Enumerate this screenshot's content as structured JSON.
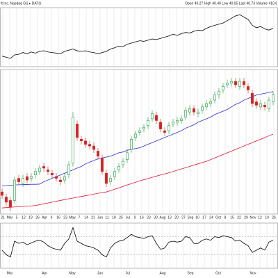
{
  "header": {
    "title": "ft Inc. Nasdaq GS ▸ DATG",
    "quote": "Open 40.27  High 40.40  Low 40.05  Last 40.73  Volume 410.6"
  },
  "chart_data": {
    "type": "candlestick",
    "ylim": [
      0,
      85
    ],
    "open": [
      13,
      10,
      8,
      8,
      21,
      18,
      22,
      21,
      23,
      25,
      28,
      26,
      24,
      22,
      20,
      20,
      23,
      30,
      53,
      44,
      43,
      41,
      40,
      37,
      33,
      24,
      19,
      22,
      26,
      29,
      32,
      38,
      45,
      48,
      50,
      52,
      56,
      58,
      54,
      49,
      49,
      53,
      54,
      55,
      57,
      60,
      62,
      59,
      61,
      63,
      65,
      67,
      70,
      73,
      76,
      77,
      78,
      75,
      78,
      75,
      71,
      66,
      63,
      64,
      62,
      66
    ],
    "high": [
      15,
      12,
      10,
      22,
      23,
      23,
      24,
      24,
      27,
      29,
      30,
      28,
      26,
      24,
      22,
      24,
      31,
      60,
      55,
      46,
      45,
      43,
      42,
      39,
      35,
      26,
      23,
      27,
      30,
      33,
      38,
      46,
      49,
      51,
      53,
      57,
      61,
      60,
      56,
      51,
      54,
      56,
      57,
      58,
      63,
      64,
      64,
      62,
      65,
      67,
      68,
      72,
      74,
      77,
      79,
      80,
      80,
      80,
      80,
      77,
      73,
      68,
      67,
      66,
      69,
      72
    ],
    "low": [
      9,
      5,
      2,
      6,
      17,
      16,
      18,
      19,
      21,
      23,
      25,
      23,
      21,
      19,
      17,
      18,
      21,
      28,
      43,
      41,
      39,
      38,
      36,
      32,
      23,
      16,
      17,
      20,
      24,
      27,
      30,
      36,
      43,
      46,
      48,
      50,
      54,
      53,
      48,
      46,
      47,
      51,
      52,
      53,
      55,
      58,
      58,
      57,
      59,
      61,
      63,
      65,
      68,
      71,
      74,
      75,
      74,
      73,
      74,
      71,
      63,
      62,
      61,
      61,
      60,
      64
    ],
    "close": [
      11,
      7,
      4,
      20,
      19,
      21,
      20,
      22,
      25,
      27,
      27,
      25,
      23,
      21,
      19,
      22,
      29,
      57,
      45,
      43,
      41,
      40,
      38,
      34,
      25,
      18,
      21,
      25,
      28,
      31,
      36,
      44,
      47,
      49,
      51,
      55,
      59,
      55,
      50,
      48,
      52,
      54,
      55,
      56,
      61,
      62,
      60,
      60,
      63,
      65,
      66,
      70,
      72,
      75,
      77,
      78,
      76,
      78,
      76,
      73,
      65,
      64,
      65,
      63,
      67,
      70
    ],
    "up_color": "#1a9c3a",
    "down_color": "#d62020",
    "series": [
      {
        "color": "#2a2ad0",
        "values": [
          16.5,
          16.7,
          16.9,
          17.1,
          17.2,
          17.3,
          17.4,
          17.5,
          17.5,
          17.6,
          19,
          20,
          21,
          22,
          23,
          24,
          25,
          26,
          27,
          28,
          29.5,
          30.5,
          31.5,
          32.5,
          33,
          33.5,
          34,
          35,
          36,
          36.5,
          37.5,
          38,
          38.5,
          39,
          40,
          41,
          42,
          43,
          44,
          45,
          46,
          47,
          48,
          49,
          50.5,
          51.5,
          52.5,
          54,
          55,
          56,
          57,
          58.5,
          59.5,
          60.5,
          61.5,
          63,
          64.5,
          65.5,
          67,
          68,
          69,
          70,
          70.5,
          71,
          71.5,
          72
        ]
      },
      {
        "color": "#e01030",
        "values": [
          3.6,
          3.8,
          4,
          4.2,
          4.3,
          4.5,
          4.7,
          4.8,
          5,
          5.5,
          6,
          6.5,
          7,
          7.5,
          8,
          8.5,
          9,
          9.4,
          9.9,
          10.3,
          10.8,
          11.2,
          11.7,
          12.2,
          12.6,
          13,
          13.8,
          14.6,
          15.4,
          16.3,
          17.1,
          17.9,
          18.7,
          19.5,
          20.2,
          20.9,
          21.6,
          22.3,
          23,
          23.6,
          24.3,
          25,
          25.8,
          26.5,
          27.3,
          28,
          28.8,
          29.5,
          30.3,
          31,
          32,
          33,
          34,
          35,
          36,
          37,
          38,
          39,
          40,
          41,
          42,
          43,
          44,
          45,
          46,
          47
        ]
      }
    ],
    "top_panel": {
      "ylim": [
        0,
        100
      ],
      "color": "#000000",
      "values": [
        18,
        16,
        14,
        20,
        21,
        24,
        22,
        25,
        23,
        26,
        27,
        25,
        24,
        23,
        22,
        26,
        28,
        30,
        27,
        26,
        27,
        25,
        24,
        22,
        24,
        26,
        30,
        32,
        35,
        34,
        38,
        40,
        42,
        44,
        43,
        45,
        47,
        46,
        48,
        50,
        52,
        55,
        53,
        56,
        58,
        57,
        60,
        62,
        61,
        65,
        68,
        70,
        72,
        74,
        78,
        82,
        86,
        88,
        84,
        80,
        70,
        66,
        68,
        64,
        62,
        65
      ]
    },
    "bottom_panel": {
      "ylim": [
        0,
        100
      ],
      "color": "#000000",
      "levels": [
        70,
        30
      ],
      "values": [
        40,
        30,
        25,
        60,
        55,
        58,
        52,
        56,
        60,
        62,
        58,
        50,
        45,
        42,
        40,
        55,
        65,
        90,
        60,
        55,
        50,
        48,
        45,
        40,
        30,
        25,
        45,
        55,
        60,
        62,
        68,
        75,
        70,
        68,
        66,
        70,
        72,
        55,
        42,
        45,
        58,
        60,
        58,
        60,
        70,
        68,
        55,
        55,
        62,
        65,
        62,
        70,
        68,
        72,
        70,
        68,
        60,
        62,
        55,
        50,
        35,
        40,
        45,
        40,
        58,
        62
      ]
    },
    "x_labels": [
      "21",
      "Mar",
      "5",
      "12",
      "19",
      "26",
      "Apr",
      "9",
      "16",
      "23",
      "May",
      "7",
      "14",
      "21",
      "Jun",
      "11",
      "18",
      "25",
      "Jul",
      "9",
      "16",
      "23",
      "30",
      "Aug",
      "13",
      "20",
      "27",
      "Sep",
      "10",
      "17",
      "24",
      "Oct",
      "8",
      "15",
      "22",
      "29",
      "Nov",
      "12",
      "19",
      "26"
    ],
    "grid": true
  }
}
